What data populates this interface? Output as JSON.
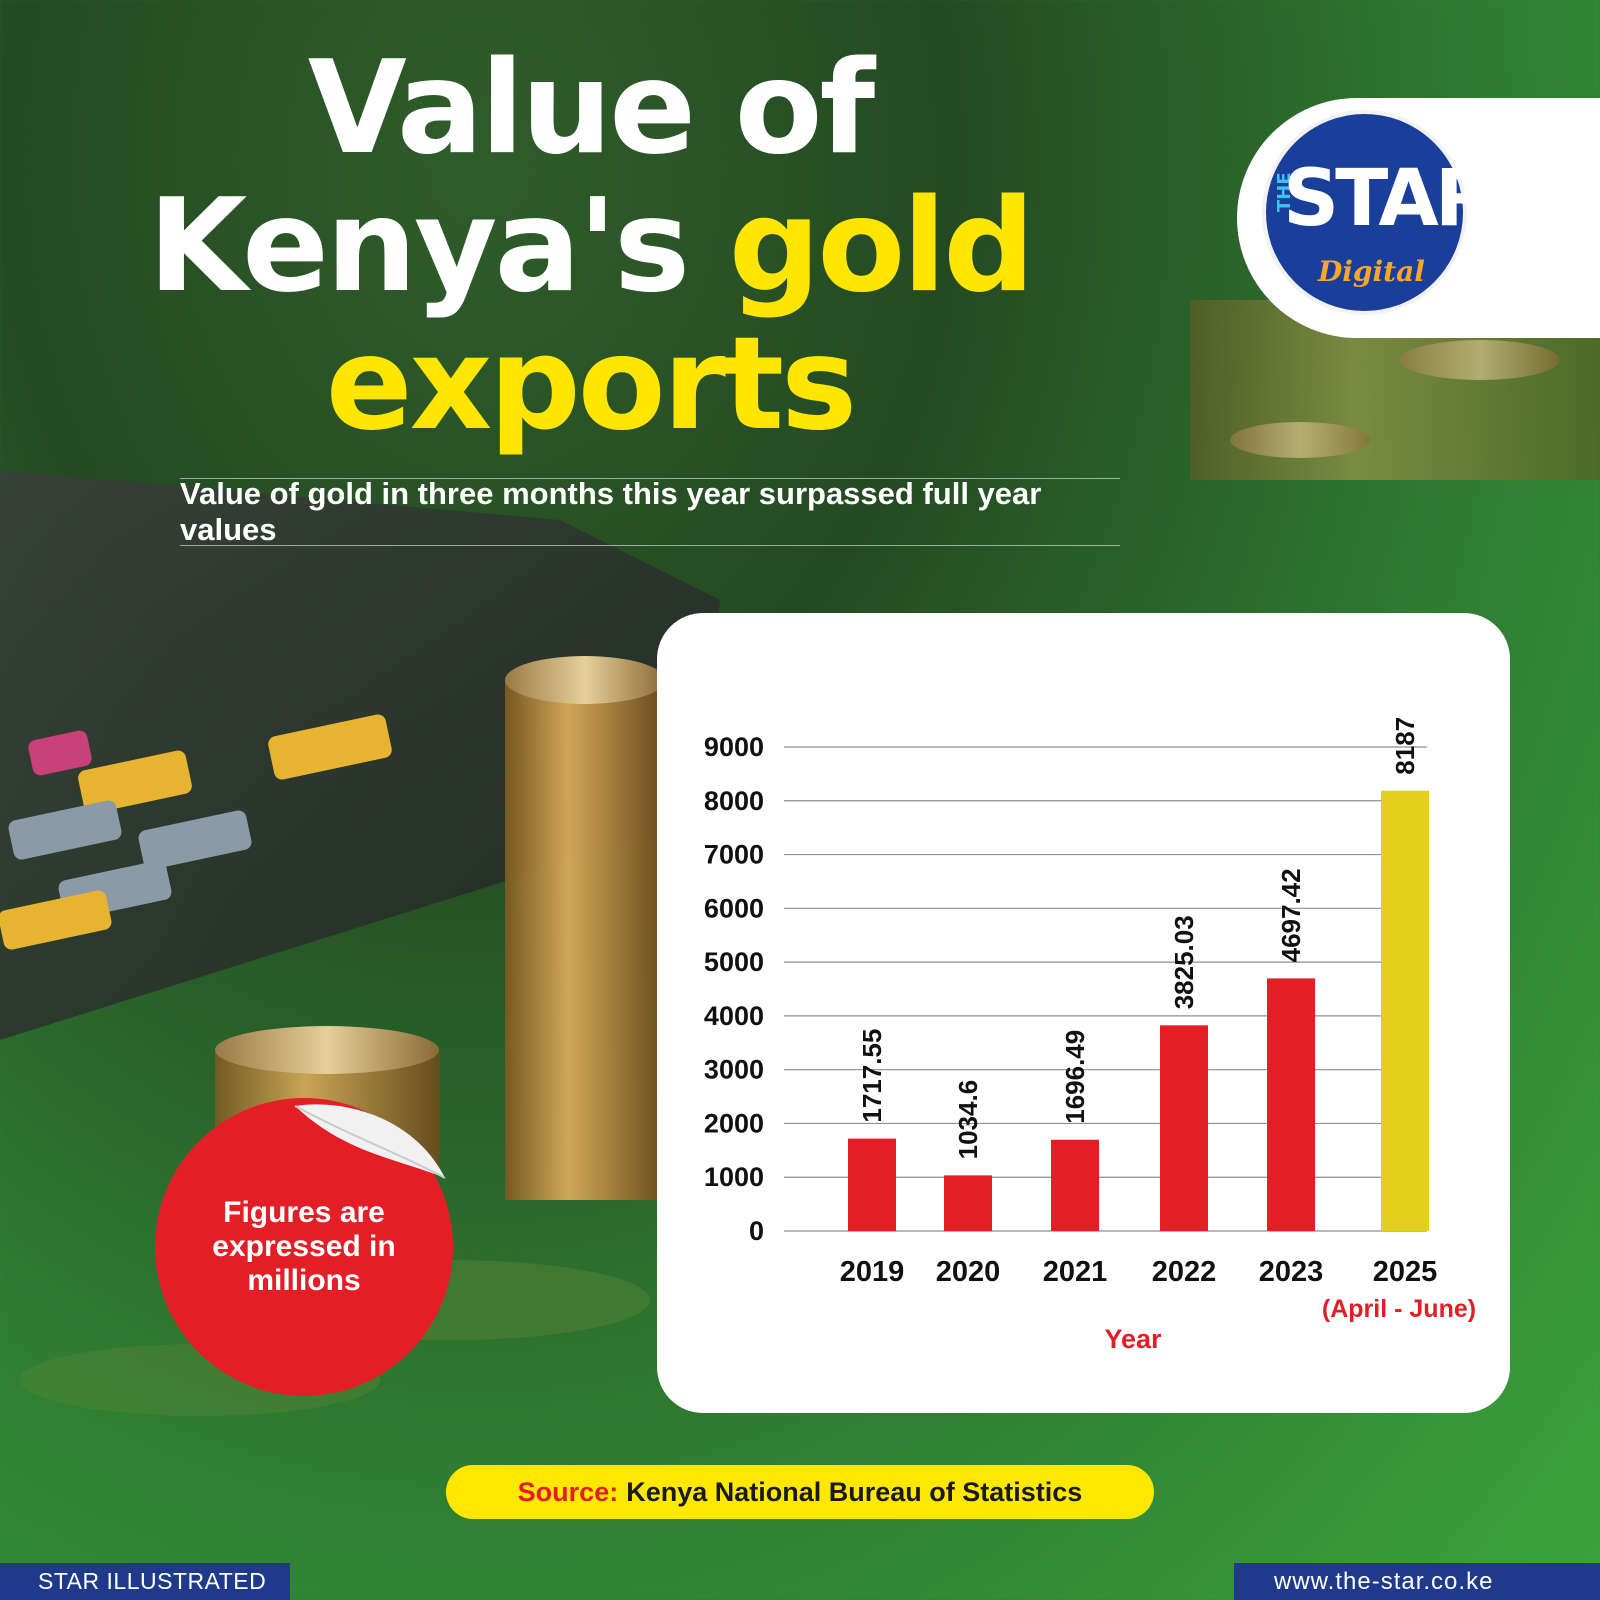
{
  "header": {
    "title_line1": "Value of",
    "title_line2_white": "Kenya's ",
    "title_line2_gold": "gold",
    "title_line3_gold": "exports",
    "subtitle": "Value of gold in three months this year surpassed full year values"
  },
  "logo": {
    "the": "THE",
    "star": "STAR",
    "digital": "Digital"
  },
  "sticker": {
    "text": "Figures are expressed in millions"
  },
  "source": {
    "label": "Source:",
    "text": "Kenya National Bureau of Statistics"
  },
  "footer": {
    "left": "STAR ILLUSTRATED",
    "right": "www.the-star.co.ke"
  },
  "colors": {
    "bar": "#e31e27",
    "bar_highlight": "#e3cf1c",
    "accent_gold": "#ffe600",
    "brand_blue": "#1f3a8a"
  },
  "chart_data": {
    "type": "bar",
    "categories": [
      "2019",
      "2020",
      "2021",
      "2022",
      "2023",
      "2025"
    ],
    "category_notes": [
      "",
      "",
      "",
      "",
      "",
      "(April - June)"
    ],
    "values": [
      1717.55,
      1034.6,
      1696.49,
      3825.03,
      4697.42,
      8187
    ],
    "data_labels": [
      "1717.55",
      "1034.6",
      "1696.49",
      "3825.03",
      "4697.42",
      "8187"
    ],
    "highlight_index": 5,
    "xlabel": "Year",
    "ylabel": "",
    "ylim": [
      0,
      9000
    ],
    "yticks": [
      0,
      1000,
      2000,
      3000,
      4000,
      5000,
      6000,
      7000,
      8000,
      9000
    ],
    "grid": true
  }
}
